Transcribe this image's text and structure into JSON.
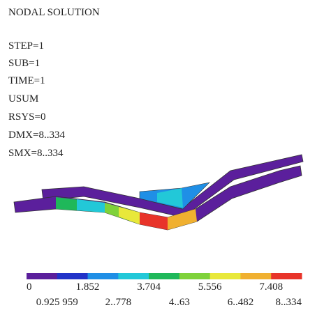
{
  "header": {
    "title": "NODAL SOLUTION",
    "lines": [
      "STEP=1",
      "SUB=1",
      "TIME=1",
      "USUM",
      "RSYS=0",
      "DMX=8..334",
      "SMX=8..334"
    ]
  },
  "legend": {
    "colors": [
      "#5b1f9c",
      "#2233c8",
      "#1f8fe6",
      "#22c8d8",
      "#1fb85a",
      "#7fd23a",
      "#e8e83a",
      "#f0b030",
      "#e8342a"
    ],
    "top_labels": [
      "0",
      "1.852",
      "3.704",
      "5.556",
      "7.408"
    ],
    "bottom_labels": [
      "0.925 959",
      "2..778",
      "4..63",
      "6..482",
      "8..334"
    ]
  }
}
